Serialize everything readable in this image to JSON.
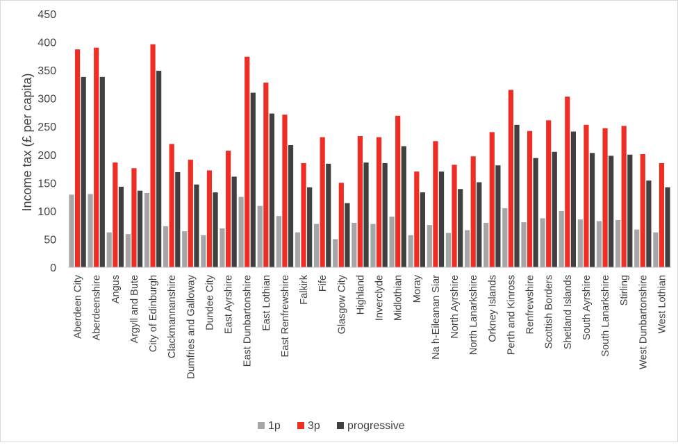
{
  "chart_data": {
    "type": "bar",
    "ylabel": "Income tax (£ per capita)",
    "ylim": [
      0,
      450
    ],
    "yticks": [
      0,
      50,
      100,
      150,
      200,
      250,
      300,
      350,
      400,
      450
    ],
    "grid": false,
    "legend": "bottom",
    "categories": [
      "Aberdeen City",
      "Aberdeenshire",
      "Angus",
      "Argyll and Bute",
      "City of Edinburgh",
      "Clackmannanshire",
      "Dumfries and Galloway",
      "Dundee City",
      "East Ayrshire",
      "East Dunbartonshire",
      "East Lothian",
      "East Renfrewshire",
      "Falkirk",
      "Fife",
      "Glasgow City",
      "Highland",
      "Inverclyde",
      "Midlothian",
      "Moray",
      "Na h-Eileanan Siar",
      "North Ayrshire",
      "North Lanarkshire",
      "Orkney Islands",
      "Perth and Kinross",
      "Renfrewshire",
      "Scottish Borders",
      "Shetland Islands",
      "South Ayrshire",
      "South Lanarkshire",
      "Stirling",
      "West Dunbartonshire",
      "West Lothian"
    ],
    "series": [
      {
        "name": "1p",
        "color": "#a6a6a6",
        "values": [
          129,
          130,
          62,
          59,
          132,
          73,
          64,
          57,
          69,
          125,
          109,
          91,
          62,
          77,
          50,
          79,
          77,
          90,
          57,
          75,
          61,
          66,
          79,
          105,
          80,
          87,
          100,
          85,
          82,
          84,
          67,
          62
        ]
      },
      {
        "name": "3p",
        "color": "#ee2e24",
        "values": [
          387,
          390,
          186,
          176,
          396,
          219,
          191,
          172,
          207,
          374,
          328,
          271,
          185,
          231,
          150,
          233,
          231,
          269,
          170,
          224,
          182,
          197,
          240,
          315,
          242,
          261,
          303,
          253,
          247,
          251,
          201,
          185
        ]
      },
      {
        "name": "progressive",
        "color": "#404040",
        "values": [
          338,
          338,
          143,
          136,
          349,
          169,
          147,
          133,
          161,
          310,
          273,
          217,
          142,
          184,
          114,
          186,
          185,
          215,
          133,
          170,
          139,
          151,
          181,
          253,
          194,
          205,
          241,
          203,
          198,
          200,
          154,
          142
        ]
      }
    ]
  }
}
